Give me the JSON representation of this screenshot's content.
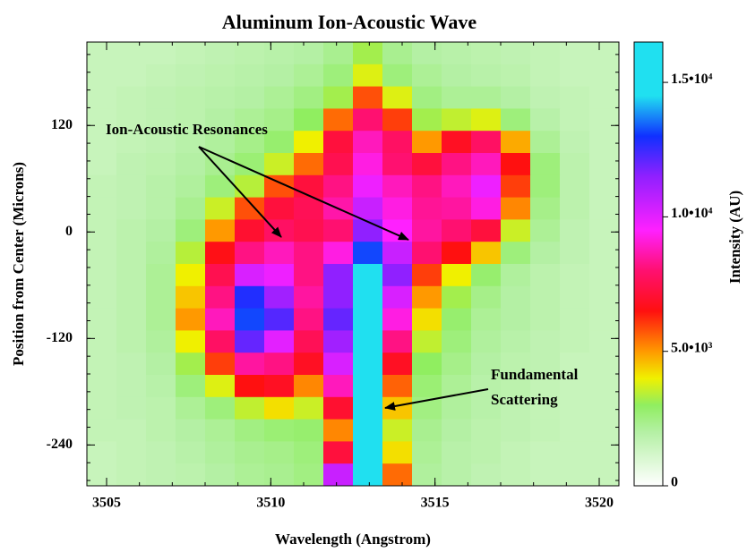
{
  "chart_data": {
    "type": "heatmap",
    "title": "Aluminum Ion-Acoustic Wave",
    "x_label": "Wavelength (Angstrom)",
    "y_label": "Position from Center (Microns)",
    "colorbar_label": "Intensity (AU)",
    "xlim": [
      3504.4,
      3520.6
    ],
    "ylim": [
      -286,
      214
    ],
    "xticks": [
      3505,
      3510,
      3515,
      3520
    ],
    "yticks": [
      -240,
      -120,
      0,
      120
    ],
    "xminorticks": [
      3505,
      3506,
      3507,
      3508,
      3509,
      3510,
      3511,
      3512,
      3513,
      3514,
      3515,
      3516,
      3517,
      3518,
      3519,
      3520
    ],
    "yminorticks": [
      -280,
      -260,
      -240,
      -220,
      -200,
      -180,
      -160,
      -140,
      -120,
      -100,
      -80,
      -60,
      -40,
      -20,
      0,
      20,
      40,
      60,
      80,
      100,
      120,
      140,
      160,
      180,
      200
    ],
    "clim": [
      0,
      16500
    ],
    "cticks": [
      0,
      {
        "value": 5000,
        "label": "5.0•10³"
      },
      {
        "value": 10000,
        "label": "1.0•10⁴"
      },
      {
        "value": 15000,
        "label": "1.5•10⁴"
      }
    ],
    "colorscale": [
      {
        "value": 0,
        "color": "#ffffff"
      },
      {
        "value": 2000,
        "color": "#b4f0a4"
      },
      {
        "value": 3000,
        "color": "#90ee60"
      },
      {
        "value": 4000,
        "color": "#f0f000"
      },
      {
        "value": 5000,
        "color": "#ff9900"
      },
      {
        "value": 6500,
        "color": "#ff1010"
      },
      {
        "value": 8000,
        "color": "#ff1070"
      },
      {
        "value": 9500,
        "color": "#ff20ff"
      },
      {
        "value": 11500,
        "color": "#9020ff"
      },
      {
        "value": 13000,
        "color": "#1030ff"
      },
      {
        "value": 14500,
        "color": "#20e0f0"
      },
      {
        "value": 16500,
        "color": "#20e0f0"
      }
    ],
    "x": [
      3504.85,
      3505.75,
      3506.65,
      3507.55,
      3508.45,
      3509.35,
      3510.25,
      3511.15,
      3512.05,
      3512.95,
      3513.85,
      3514.75,
      3515.65,
      3516.55,
      3517.45,
      3518.35,
      3519.25,
      3520.15
    ],
    "y": [
      201.5,
      176.5,
      151.5,
      126.5,
      101.5,
      76.5,
      51.5,
      26.5,
      1.5,
      -23.5,
      -48.5,
      -73.5,
      -98.5,
      -123.5,
      -148.5,
      -173.5,
      -198.5,
      -223.5,
      -248.5,
      -273.5
    ],
    "z": [
      [
        1500,
        1500,
        1500,
        1600,
        1700,
        1800,
        1900,
        2000,
        2300,
        3200,
        2300,
        2000,
        1900,
        1800,
        1700,
        1600,
        1500,
        1500
      ],
      [
        1500,
        1500,
        1600,
        1700,
        1800,
        1900,
        2000,
        2200,
        2600,
        3800,
        2600,
        2200,
        2000,
        1900,
        1800,
        1600,
        1500,
        1500
      ],
      [
        1500,
        1600,
        1700,
        1800,
        1900,
        2000,
        2200,
        2500,
        3200,
        5800,
        3800,
        2500,
        2200,
        2200,
        2000,
        1700,
        1600,
        1500
      ],
      [
        1500,
        1600,
        1700,
        1800,
        2000,
        2200,
        2400,
        3000,
        5500,
        8000,
        6000,
        3200,
        3500,
        3800,
        2600,
        1900,
        1600,
        1500
      ],
      [
        1500,
        1600,
        1700,
        1900,
        2100,
        2400,
        2800,
        4000,
        7200,
        8800,
        7800,
        5000,
        6800,
        7800,
        4800,
        2200,
        1700,
        1500
      ],
      [
        1500,
        1700,
        1800,
        2000,
        2300,
        2700,
        3600,
        5500,
        7500,
        9200,
        8000,
        7200,
        8200,
        8800,
        6500,
        2600,
        1800,
        1500
      ],
      [
        1600,
        1700,
        1900,
        2100,
        2600,
        3400,
        5800,
        7200,
        8200,
        9800,
        8800,
        8200,
        8800,
        9800,
        6000,
        2600,
        1800,
        1500
      ],
      [
        1600,
        1700,
        1900,
        2300,
        3600,
        5800,
        7200,
        7600,
        8600,
        10500,
        9200,
        8400,
        8500,
        9200,
        5200,
        2400,
        1800,
        1500
      ],
      [
        1600,
        1800,
        2000,
        2600,
        5000,
        7000,
        7800,
        7500,
        8000,
        11500,
        9500,
        8500,
        8000,
        7200,
        3600,
        2200,
        1700,
        1500
      ],
      [
        1600,
        1800,
        2100,
        3400,
        6600,
        8200,
        8800,
        8200,
        9200,
        13200,
        10500,
        8000,
        6500,
        4500,
        2600,
        2000,
        1700,
        1500
      ],
      [
        1600,
        1800,
        2200,
        4000,
        7500,
        10200,
        9800,
        8200,
        11500,
        15800,
        11500,
        6000,
        4000,
        2800,
        2100,
        1800,
        1600,
        1500
      ],
      [
        1600,
        1800,
        2200,
        4500,
        8200,
        12800,
        11200,
        8500,
        11500,
        16200,
        10200,
        5000,
        3200,
        2400,
        2000,
        1800,
        1600,
        1500
      ],
      [
        1600,
        1800,
        2200,
        5000,
        8800,
        13200,
        12200,
        8200,
        12000,
        16200,
        9200,
        4200,
        2800,
        2200,
        2000,
        1800,
        1600,
        1500
      ],
      [
        1600,
        1800,
        2100,
        4000,
        7800,
        12000,
        10000,
        7600,
        11200,
        16000,
        8200,
        3500,
        2600,
        2100,
        1900,
        1700,
        1600,
        1500
      ],
      [
        1600,
        1700,
        2000,
        3200,
        6000,
        8500,
        8200,
        6800,
        10200,
        16000,
        6800,
        3000,
        2400,
        2000,
        1800,
        1700,
        1500,
        1500
      ],
      [
        1600,
        1700,
        1900,
        2600,
        3800,
        6500,
        6800,
        5200,
        8800,
        15500,
        5600,
        2700,
        2200,
        1900,
        1800,
        1600,
        1500,
        1500
      ],
      [
        1600,
        1700,
        1800,
        2200,
        2600,
        3500,
        4200,
        3600,
        7000,
        15000,
        4500,
        2500,
        2100,
        1900,
        1700,
        1600,
        1500,
        1500
      ],
      [
        1600,
        1600,
        1800,
        2000,
        2200,
        2500,
        2700,
        2800,
        5200,
        14500,
        3600,
        2300,
        2000,
        1800,
        1700,
        1600,
        1500,
        1500
      ],
      [
        1500,
        1600,
        1700,
        1900,
        2100,
        2300,
        2400,
        2600,
        7200,
        15800,
        4200,
        2200,
        1900,
        1800,
        1600,
        1500,
        1500,
        1500
      ],
      [
        1500,
        1600,
        1700,
        1800,
        2000,
        2200,
        2300,
        2500,
        10500,
        16500,
        5500,
        2100,
        1900,
        1700,
        1600,
        1500,
        1500,
        1500
      ]
    ],
    "annotations": [
      "Ion-Acoustic Resonances",
      "Fundamental",
      "Scattering"
    ]
  }
}
